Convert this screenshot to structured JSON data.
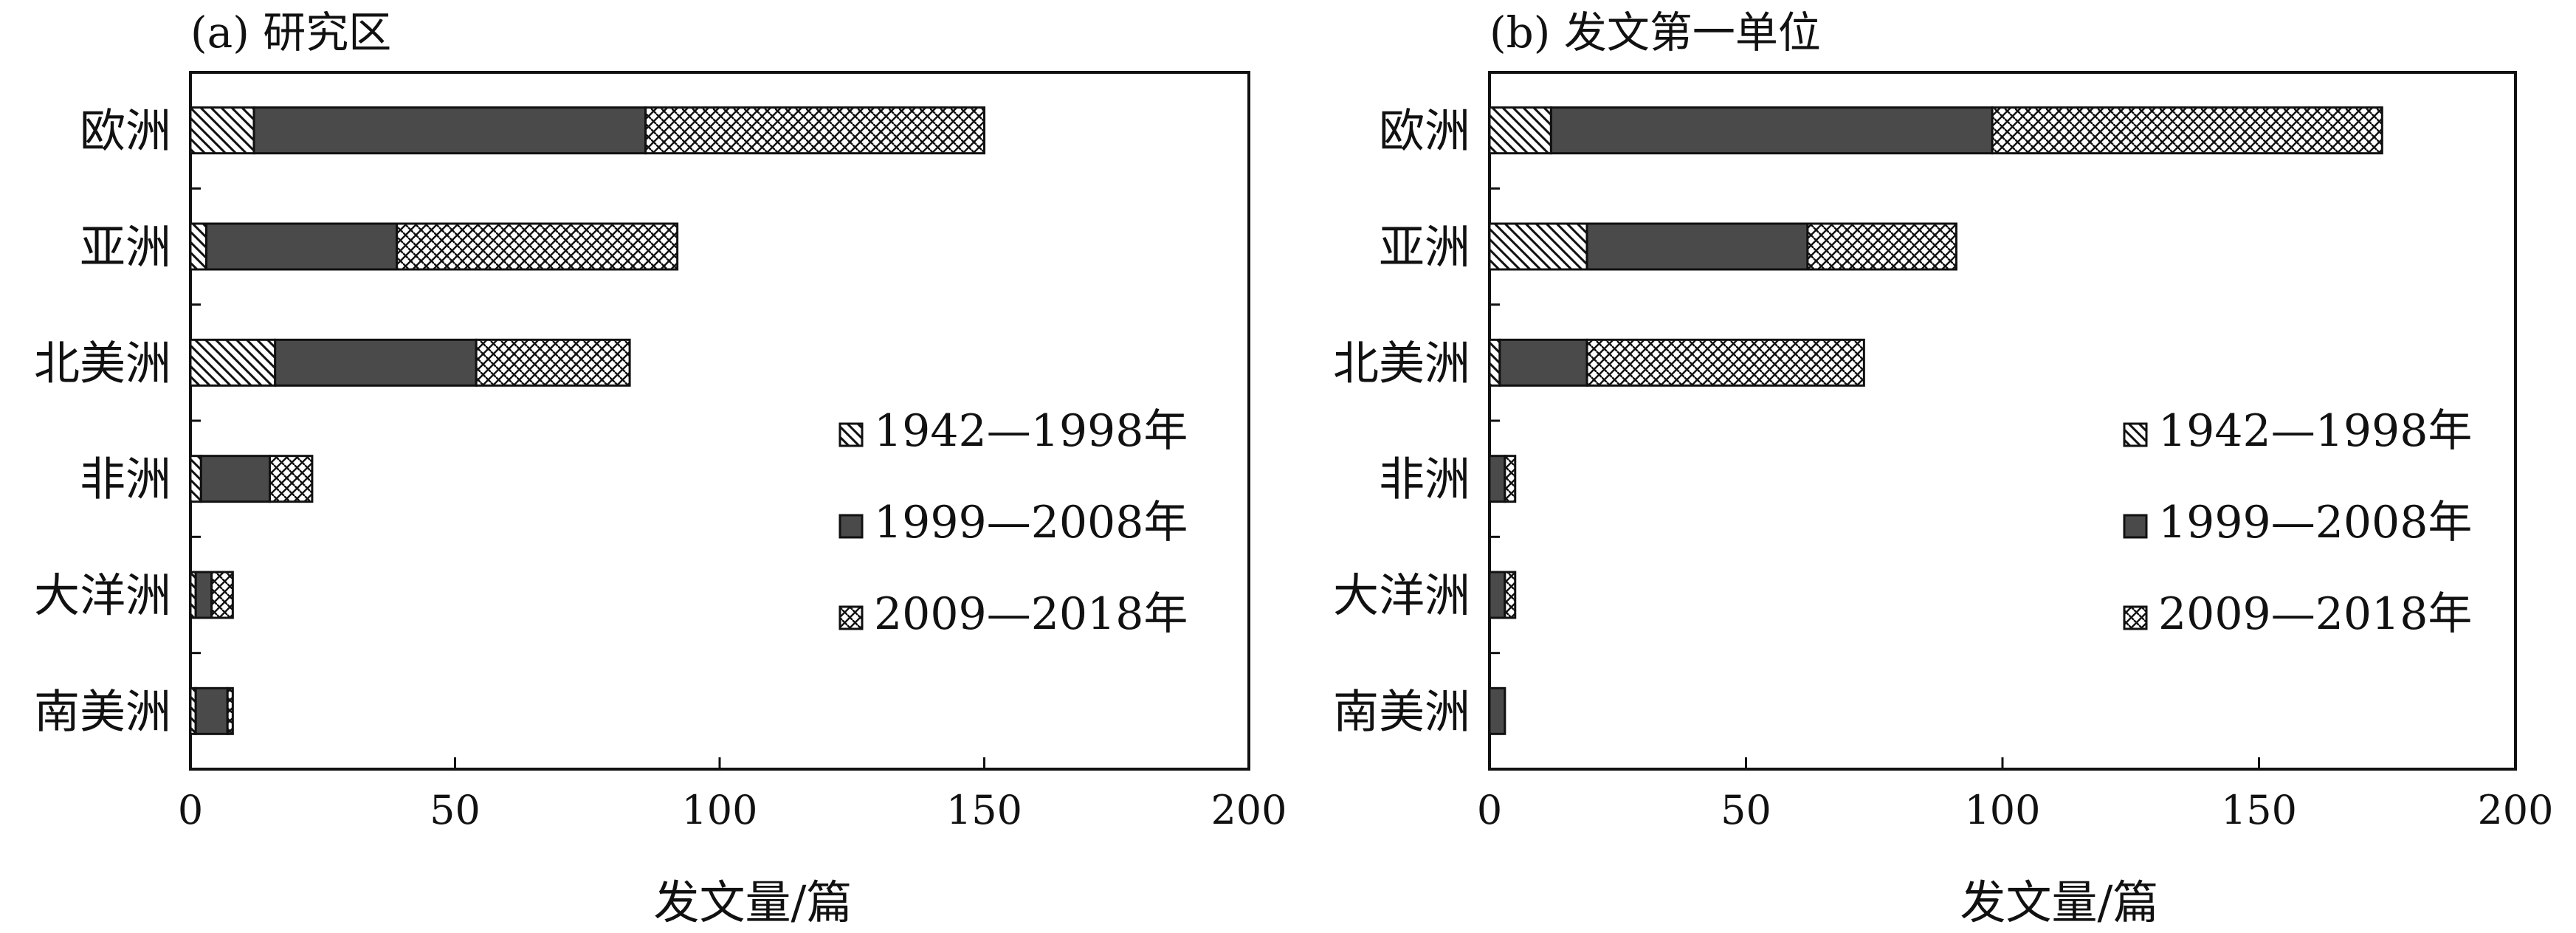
{
  "chart_data": [
    {
      "type": "bar",
      "orientation": "horizontal",
      "stacked": true,
      "title": "(a) 研究区",
      "xlabel": "发文量/篇",
      "ylabel": "",
      "xlim": [
        0,
        200
      ],
      "xticks": [
        "0",
        "50",
        "100",
        "150",
        "200"
      ],
      "categories": [
        "欧洲",
        "亚洲",
        "北美洲",
        "非洲",
        "大洋洲",
        "南美洲"
      ],
      "series": [
        {
          "name": "1942—1998年",
          "pattern": "hatch-diagonal",
          "values": [
            12,
            3,
            16,
            2,
            1,
            1
          ]
        },
        {
          "name": "1999—2008年",
          "pattern": "solid-dark",
          "values": [
            74,
            36,
            38,
            13,
            3,
            6
          ]
        },
        {
          "name": "2009—2018年",
          "pattern": "crosshatch",
          "values": [
            64,
            53,
            29,
            8,
            4,
            1
          ]
        }
      ],
      "legend_position": "right-middle",
      "grid": false
    },
    {
      "type": "bar",
      "orientation": "horizontal",
      "stacked": true,
      "title": "(b) 发文第一单位",
      "xlabel": "发文量/篇",
      "ylabel": "",
      "xlim": [
        0,
        200
      ],
      "xticks": [
        "0",
        "50",
        "100",
        "150",
        "200"
      ],
      "categories": [
        "欧洲",
        "亚洲",
        "北美洲",
        "非洲",
        "大洋洲",
        "南美洲"
      ],
      "series": [
        {
          "name": "1942—1998年",
          "pattern": "hatch-diagonal",
          "values": [
            12,
            19,
            2,
            0,
            0,
            0
          ]
        },
        {
          "name": "1999—2008年",
          "pattern": "solid-dark",
          "values": [
            86,
            43,
            17,
            3,
            3,
            3
          ]
        },
        {
          "name": "2009—2018年",
          "pattern": "crosshatch",
          "values": [
            76,
            29,
            54,
            2,
            2,
            0
          ]
        }
      ],
      "legend_position": "right-middle",
      "grid": false
    }
  ],
  "colors": {
    "bar_dark": "#4a4a4a",
    "outline": "#111111",
    "background": "#ffffff"
  }
}
